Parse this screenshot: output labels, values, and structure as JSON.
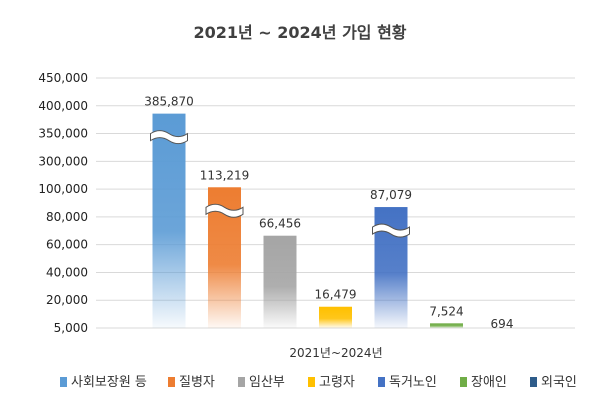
{
  "chart_data": {
    "type": "bar",
    "title": "2021년 ~ 2024년 가입 현황",
    "categories": [
      "2021년~2024년"
    ],
    "y_tick_labels": [
      "5,000",
      "20,000",
      "40,000",
      "60,000",
      "80,000",
      "100,000",
      "300,000",
      "350,000",
      "400,000",
      "450,000"
    ],
    "axis_break": true,
    "grid": true,
    "legend_position": "bottom",
    "series": [
      {
        "name": "사회보장원 등",
        "value": 385870,
        "label": "385,870",
        "color": "#5b9bd5",
        "break": true
      },
      {
        "name": "질병자",
        "value": 113219,
        "label": "113,219",
        "color": "#ed7d31",
        "break": true
      },
      {
        "name": "임산부",
        "value": 66456,
        "label": "66,456",
        "color": "#a5a5a5",
        "break": false
      },
      {
        "name": "고령자",
        "value": 16479,
        "label": "16,479",
        "color": "#ffc000",
        "break": false
      },
      {
        "name": "독거노인",
        "value": 87079,
        "label": "87,079",
        "color": "#4472c4",
        "break": true
      },
      {
        "name": "장애인",
        "value": 7524,
        "label": "7,524",
        "color": "#70ad47",
        "break": false
      },
      {
        "name": "외국인",
        "value": 694,
        "label": "694",
        "color": "#2e5c8a",
        "break": false
      }
    ]
  }
}
